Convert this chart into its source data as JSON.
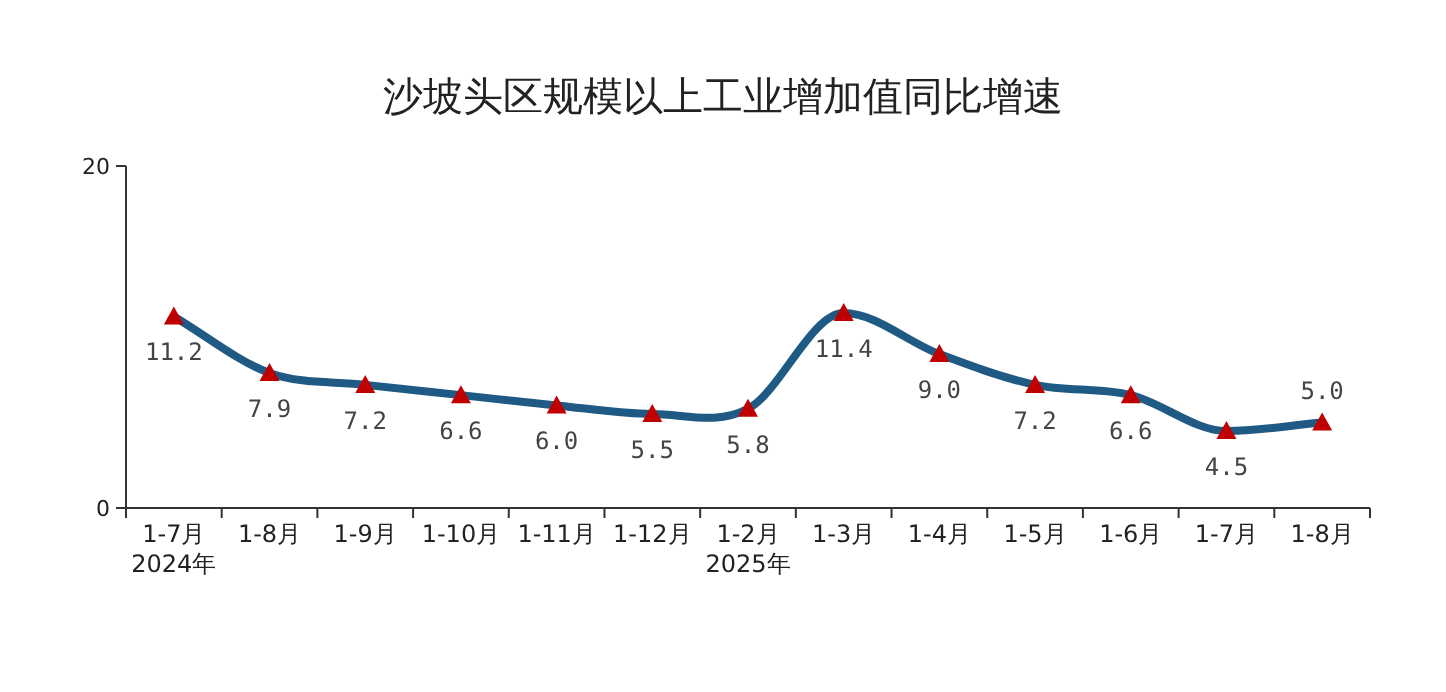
{
  "chart_data": {
    "type": "line",
    "title": "沙坡头区规模以上工业增加值同比增速",
    "categories": [
      "1-7月\n2024年",
      "1-8月",
      "1-9月",
      "1-10月",
      "1-11月",
      "1-12月",
      "1-2月\n2025年",
      "1-3月",
      "1-4月",
      "1-5月",
      "1-6月",
      "1-7月",
      "1-8月"
    ],
    "series": [
      {
        "color": "#1f5a85",
        "values": [
          11.2,
          7.9,
          7.2,
          6.6,
          6.0,
          5.5,
          5.8,
          11.4,
          9.0,
          7.2,
          6.6,
          4.5,
          5.0
        ],
        "value_labels": [
          "11.2",
          "7.9",
          "7.2",
          "6.6",
          "6.0",
          "5.5",
          "5.8",
          "11.4",
          "9.0",
          "7.2",
          "6.6",
          "4.5",
          "5.0"
        ]
      }
    ],
    "ylim": [
      0,
      20
    ],
    "yticks": [
      0,
      20
    ],
    "marker": "triangle",
    "grid": false
  }
}
